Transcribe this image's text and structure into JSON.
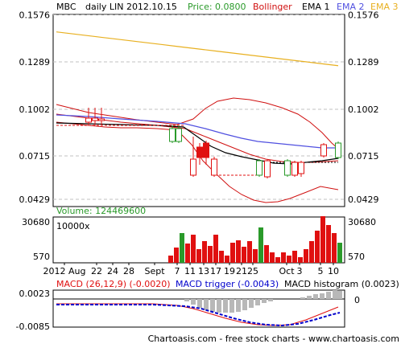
{
  "header": {
    "symbol": "MBC",
    "period_text": "daily LIN 2012.10.15",
    "price_label": "Price: 0.0800",
    "bollinger_label": "Bollinger",
    "ema1_label": "EMA 1",
    "ema2_label": "EMA 2",
    "ema3_label": "EMA 3"
  },
  "colors": {
    "price_text": "#2a9a2a",
    "bollinger": "#d01010",
    "ema1": "#000000",
    "ema2": "#5050e0",
    "ema3": "#e8b020",
    "up_candle": "#2a9a2a",
    "down_candle": "#e01010",
    "grid": "#c0c0c0",
    "macd": "#e01010",
    "trigger": "#0000cc",
    "histogram": "#b8b8b8"
  },
  "volume": {
    "label": "Volume: 124469600",
    "unit": "10000x"
  },
  "macd": {
    "label": "MACD (26,12,9) (-0.0020)",
    "trigger_label": "MACD trigger (-0.0043)",
    "histogram_label": "MACD histogram (0.0023)"
  },
  "footer": {
    "text": "Chartoasis.com - free stock charts - www.chartoasis.com"
  },
  "chart_data": [
    {
      "type": "candlestick",
      "ylim": [
        0.0429,
        0.1576
      ],
      "yticks": [
        "0.1576",
        "0.1289",
        "0.1002",
        "0.0715",
        "0.0429"
      ],
      "series": [
        {
          "name": "EMA 3",
          "values": [
            0.147,
            0.146,
            0.145,
            0.144,
            0.143,
            0.142,
            0.141,
            0.14,
            0.139,
            0.138,
            0.137,
            0.136,
            0.135,
            0.134,
            0.133,
            0.132,
            0.131,
            0.13,
            0.129,
            0.128,
            0.127,
            0.126
          ]
        }
      ]
    },
    {
      "type": "bar",
      "yticks": [
        "30680",
        "570"
      ],
      "ylim": [
        570,
        30680
      ]
    },
    {
      "type": "line",
      "yticks_left": [
        "0.0023",
        "-0.0085"
      ],
      "yticks_right": [
        "0"
      ],
      "ylim": [
        -0.0085,
        0.0023
      ]
    }
  ],
  "xaxis": {
    "ticks": [
      "2012 Aug",
      "22",
      "24",
      "28",
      "Sept",
      "7",
      "11",
      "13",
      "17",
      "19",
      "21",
      "25",
      "Oct",
      "3",
      "5",
      "10"
    ]
  }
}
